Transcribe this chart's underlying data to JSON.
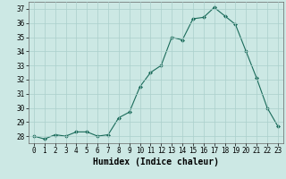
{
  "x": [
    0,
    1,
    2,
    3,
    4,
    5,
    6,
    7,
    8,
    9,
    10,
    11,
    12,
    13,
    14,
    15,
    16,
    17,
    18,
    19,
    20,
    21,
    22,
    23
  ],
  "y": [
    28.0,
    27.8,
    28.1,
    28.0,
    28.3,
    28.3,
    28.0,
    28.1,
    29.3,
    29.7,
    31.5,
    32.5,
    33.0,
    35.0,
    34.8,
    36.3,
    36.4,
    37.1,
    36.5,
    35.9,
    34.0,
    32.1,
    30.0,
    28.7
  ],
  "line_color": "#1a6b5a",
  "marker_color": "#1a6b5a",
  "bg_color": "#cce8e4",
  "grid_color": "#aacfcb",
  "xlabel": "Humidex (Indice chaleur)",
  "ylim": [
    27.5,
    37.5
  ],
  "xlim": [
    -0.5,
    23.5
  ],
  "yticks": [
    28,
    29,
    30,
    31,
    32,
    33,
    34,
    35,
    36,
    37
  ],
  "xticks": [
    0,
    1,
    2,
    3,
    4,
    5,
    6,
    7,
    8,
    9,
    10,
    11,
    12,
    13,
    14,
    15,
    16,
    17,
    18,
    19,
    20,
    21,
    22,
    23
  ],
  "tick_fontsize": 5.5,
  "label_fontsize": 7.0
}
